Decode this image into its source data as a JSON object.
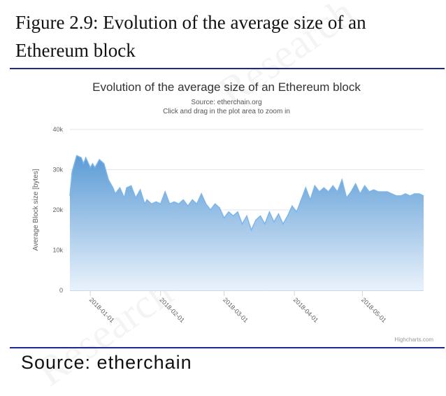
{
  "figure_title": "Figure 2.9: Evolution of the average size of an Ethereum block",
  "source_caption": "Source: etherchain",
  "chart_data": {
    "type": "area",
    "title": "Evolution of the average size of an Ethereum block",
    "subtitle_lines": [
      "Source: etherchain.org",
      "Click and drag in the plot area to zoom in"
    ],
    "xlabel": "",
    "ylabel": "Average Block size [bytes]",
    "ylim": [
      0,
      40000
    ],
    "y_ticks": [
      0,
      10000,
      20000,
      30000,
      40000
    ],
    "y_tick_labels": [
      "0",
      "10k",
      "20k",
      "30k",
      "40k"
    ],
    "x_range": [
      "2017-12-23",
      "2018-05-28"
    ],
    "x_ticks": [
      "2018-01-01",
      "2018-02-01",
      "2018-03-01",
      "2018-04-01",
      "2018-05-01"
    ],
    "grid": true,
    "legend": "none",
    "credits": "Highcharts.com",
    "series": [
      {
        "x": [
          "2017-12-23",
          "2017-12-24",
          "2017-12-26",
          "2017-12-28",
          "2017-12-29",
          "2017-12-30",
          "2018-01-01",
          "2018-01-02",
          "2018-01-03",
          "2018-01-05",
          "2018-01-07",
          "2018-01-09",
          "2018-01-11",
          "2018-01-12",
          "2018-01-14",
          "2018-01-16",
          "2018-01-17",
          "2018-01-19",
          "2018-01-21",
          "2018-01-23",
          "2018-01-25",
          "2018-01-26",
          "2018-01-28",
          "2018-01-30",
          "2018-02-01",
          "2018-02-03",
          "2018-02-05",
          "2018-02-07",
          "2018-02-09",
          "2018-02-11",
          "2018-02-13",
          "2018-02-15",
          "2018-02-17",
          "2018-02-19",
          "2018-02-21",
          "2018-02-23",
          "2018-02-25",
          "2018-02-27",
          "2018-03-01",
          "2018-03-03",
          "2018-03-05",
          "2018-03-07",
          "2018-03-09",
          "2018-03-11",
          "2018-03-13",
          "2018-03-15",
          "2018-03-17",
          "2018-03-19",
          "2018-03-21",
          "2018-03-23",
          "2018-03-25",
          "2018-03-27",
          "2018-03-29",
          "2018-03-31",
          "2018-04-02",
          "2018-04-04",
          "2018-04-06",
          "2018-04-08",
          "2018-04-10",
          "2018-04-12",
          "2018-04-14",
          "2018-04-16",
          "2018-04-18",
          "2018-04-20",
          "2018-04-22",
          "2018-04-24",
          "2018-04-26",
          "2018-04-28",
          "2018-04-30",
          "2018-05-02",
          "2018-05-04",
          "2018-05-06",
          "2018-05-08",
          "2018-05-10",
          "2018-05-12",
          "2018-05-14",
          "2018-05-16",
          "2018-05-18",
          "2018-05-20",
          "2018-05-22",
          "2018-05-24",
          "2018-05-26",
          "2018-05-28"
        ],
        "values": [
          23500,
          29500,
          33500,
          33000,
          31500,
          33000,
          30500,
          31500,
          30500,
          32500,
          31500,
          27500,
          25500,
          24000,
          25500,
          23000,
          25500,
          26000,
          23000,
          25000,
          21500,
          22500,
          21500,
          22000,
          21500,
          24500,
          21500,
          22000,
          21500,
          22500,
          21000,
          22500,
          21500,
          24000,
          21500,
          20000,
          21500,
          20500,
          18000,
          19500,
          18500,
          19500,
          16500,
          18500,
          15000,
          17500,
          18500,
          16500,
          19500,
          17000,
          19000,
          16500,
          18500,
          21000,
          19500,
          22500,
          25500,
          22500,
          26000,
          24500,
          25500,
          24500,
          26000,
          24500,
          27500,
          23000,
          24500,
          26500,
          24000,
          26000,
          24500,
          25000,
          24500,
          24500,
          24500,
          24000,
          23500,
          23500,
          24000,
          23500,
          24000,
          24000,
          23500
        ]
      }
    ],
    "colors": {
      "area_top": "#5b9bd5",
      "area_bottom": "#e9f2fb",
      "line": "#7cb5ec",
      "grid": "#e6e6e6",
      "axis_text": "#606060"
    }
  }
}
